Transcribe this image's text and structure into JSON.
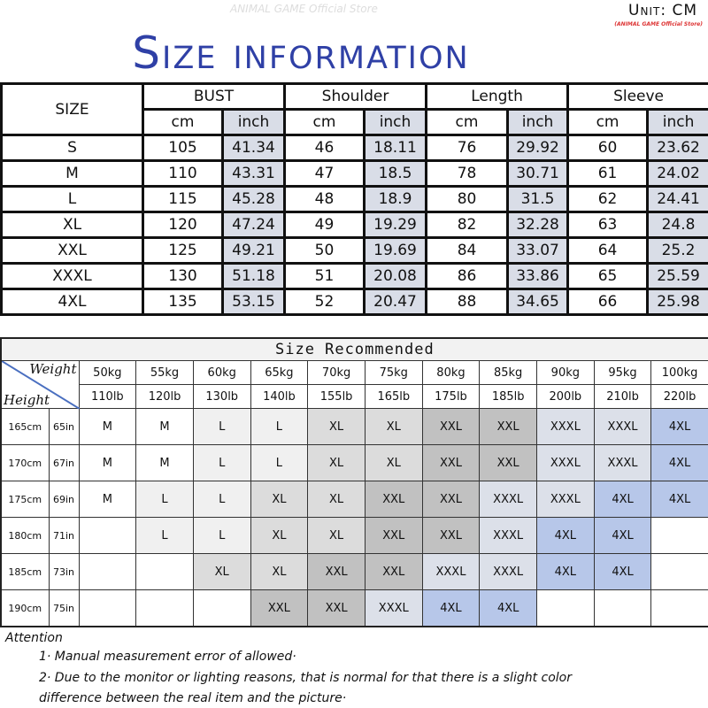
{
  "header": {
    "title": "Size information",
    "watermark": "ANIMAL GAME Official Store",
    "unit": "Unit: CM",
    "unit_sub": "(ANIMAL GAME Official Store)"
  },
  "size_table": {
    "size_header": "SIZE",
    "groups": [
      "BUST",
      "Shoulder",
      "Length",
      "Sleeve"
    ],
    "sub_headers": [
      "cm",
      "inch"
    ],
    "rows": [
      {
        "size": "S",
        "values": [
          "105",
          "41.34",
          "46",
          "18.11",
          "76",
          "29.92",
          "60",
          "23.62"
        ]
      },
      {
        "size": "M",
        "values": [
          "110",
          "43.31",
          "47",
          "18.5",
          "78",
          "30.71",
          "61",
          "24.02"
        ]
      },
      {
        "size": "L",
        "values": [
          "115",
          "45.28",
          "48",
          "18.9",
          "80",
          "31.5",
          "62",
          "24.41"
        ]
      },
      {
        "size": "XL",
        "values": [
          "120",
          "47.24",
          "49",
          "19.29",
          "82",
          "32.28",
          "63",
          "24.8"
        ]
      },
      {
        "size": "XXL",
        "values": [
          "125",
          "49.21",
          "50",
          "19.69",
          "84",
          "33.07",
          "64",
          "25.2"
        ]
      },
      {
        "size": "XXXL",
        "values": [
          "130",
          "51.18",
          "51",
          "20.08",
          "86",
          "33.86",
          "65",
          "25.59"
        ]
      },
      {
        "size": "4XL",
        "values": [
          "135",
          "53.15",
          "52",
          "20.47",
          "88",
          "34.65",
          "66",
          "25.98"
        ]
      }
    ],
    "inch_color": "#d9dde7"
  },
  "recommend_table": {
    "title": "Size Recommended",
    "weight_label": "Weight",
    "height_label": "Height",
    "weights_kg": [
      "50kg",
      "55kg",
      "60kg",
      "65kg",
      "70kg",
      "75kg",
      "80kg",
      "85kg",
      "90kg",
      "95kg",
      "100kg"
    ],
    "weights_lb": [
      "110lb",
      "120lb",
      "130lb",
      "140lb",
      "155lb",
      "165lb",
      "175lb",
      "185lb",
      "200lb",
      "210lb",
      "220lb"
    ],
    "rows": [
      {
        "cm": "165cm",
        "in": "65in",
        "sizes": [
          "M",
          "M",
          "L",
          "L",
          "XL",
          "XL",
          "XXL",
          "XXL",
          "XXXL",
          "XXXL",
          "4XL"
        ]
      },
      {
        "cm": "170cm",
        "in": "67in",
        "sizes": [
          "M",
          "M",
          "L",
          "L",
          "XL",
          "XL",
          "XXL",
          "XXL",
          "XXXL",
          "XXXL",
          "4XL"
        ]
      },
      {
        "cm": "175cm",
        "in": "69in",
        "sizes": [
          "M",
          "L",
          "L",
          "XL",
          "XL",
          "XXL",
          "XXL",
          "XXXL",
          "XXXL",
          "4XL",
          "4XL"
        ]
      },
      {
        "cm": "180cm",
        "in": "71in",
        "sizes": [
          "",
          "L",
          "L",
          "XL",
          "XL",
          "XXL",
          "XXL",
          "XXXL",
          "4XL",
          "4XL",
          ""
        ]
      },
      {
        "cm": "185cm",
        "in": "73in",
        "sizes": [
          "",
          "",
          "XL",
          "XL",
          "XXL",
          "XXL",
          "XXXL",
          "XXXL",
          "4XL",
          "4XL",
          ""
        ]
      },
      {
        "cm": "190cm",
        "in": "75in",
        "sizes": [
          "",
          "",
          "",
          "XXL",
          "XXL",
          "XXXL",
          "4XL",
          "4XL",
          "",
          "",
          ""
        ]
      }
    ],
    "size_colors": {
      "M": "#ffffff",
      "L": "#f0f0f0",
      "XL": "#dcdcdc",
      "XXL": "#c1c1c1",
      "XXXL": "#dce0e9",
      "4XL": "#b7c7e9"
    }
  },
  "attention": {
    "heading": "Attention",
    "notes": [
      "1· Manual measurement error of allowed·",
      "2·  Due to the monitor or lighting reasons, that is normal for that there is a slight color",
      "difference between the real item and the picture·"
    ]
  }
}
